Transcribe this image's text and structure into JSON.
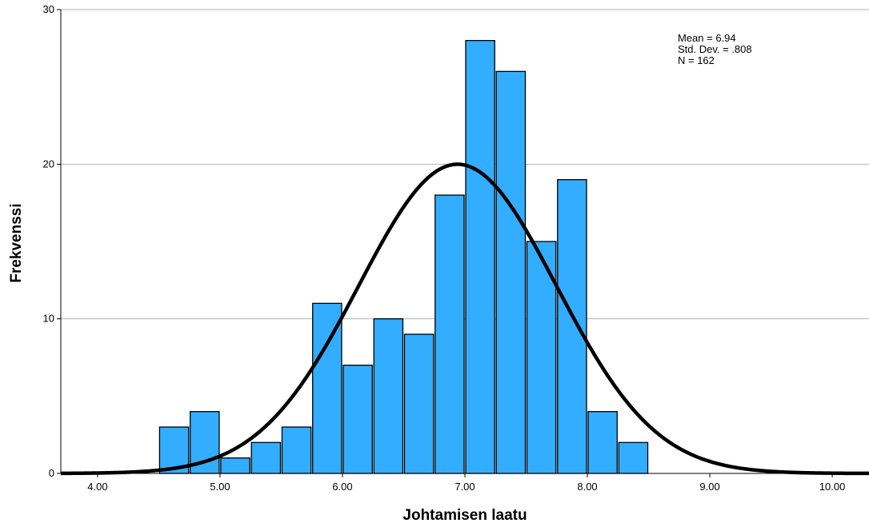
{
  "chart_data": {
    "type": "bar",
    "subtype": "histogram",
    "xlabel": "Johtamisen laatu",
    "ylabel": "Frekvenssi",
    "xlim": [
      3.7,
      10.3
    ],
    "ylim": [
      0,
      30
    ],
    "x_ticks": [
      "4.00",
      "5.00",
      "6.00",
      "7.00",
      "8.00",
      "9.00",
      "10.00"
    ],
    "y_ticks": [
      "0",
      "10",
      "20",
      "30"
    ],
    "grid": true,
    "bin_width": 0.25,
    "bins": [
      {
        "start": 4.5,
        "end": 4.75,
        "count": 3
      },
      {
        "start": 4.75,
        "end": 5.0,
        "count": 4
      },
      {
        "start": 5.0,
        "end": 5.25,
        "count": 1
      },
      {
        "start": 5.25,
        "end": 5.5,
        "count": 2
      },
      {
        "start": 5.5,
        "end": 5.75,
        "count": 3
      },
      {
        "start": 5.75,
        "end": 6.0,
        "count": 11
      },
      {
        "start": 6.0,
        "end": 6.25,
        "count": 7
      },
      {
        "start": 6.25,
        "end": 6.5,
        "count": 10
      },
      {
        "start": 6.5,
        "end": 6.75,
        "count": 9
      },
      {
        "start": 6.75,
        "end": 7.0,
        "count": 18
      },
      {
        "start": 7.0,
        "end": 7.25,
        "count": 28
      },
      {
        "start": 7.25,
        "end": 7.5,
        "count": 26
      },
      {
        "start": 7.5,
        "end": 7.75,
        "count": 15
      },
      {
        "start": 7.75,
        "end": 8.0,
        "count": 19
      },
      {
        "start": 8.0,
        "end": 8.25,
        "count": 4
      },
      {
        "start": 8.25,
        "end": 8.5,
        "count": 2
      }
    ],
    "normal_curve": {
      "mean": 6.94,
      "std_dev": 0.808,
      "n": 162
    },
    "bar_color": "#33adff",
    "curve_color": "#000000",
    "stats_lines": [
      "Mean = 6.94",
      "Std. Dev. = .808",
      "N = 162"
    ]
  }
}
